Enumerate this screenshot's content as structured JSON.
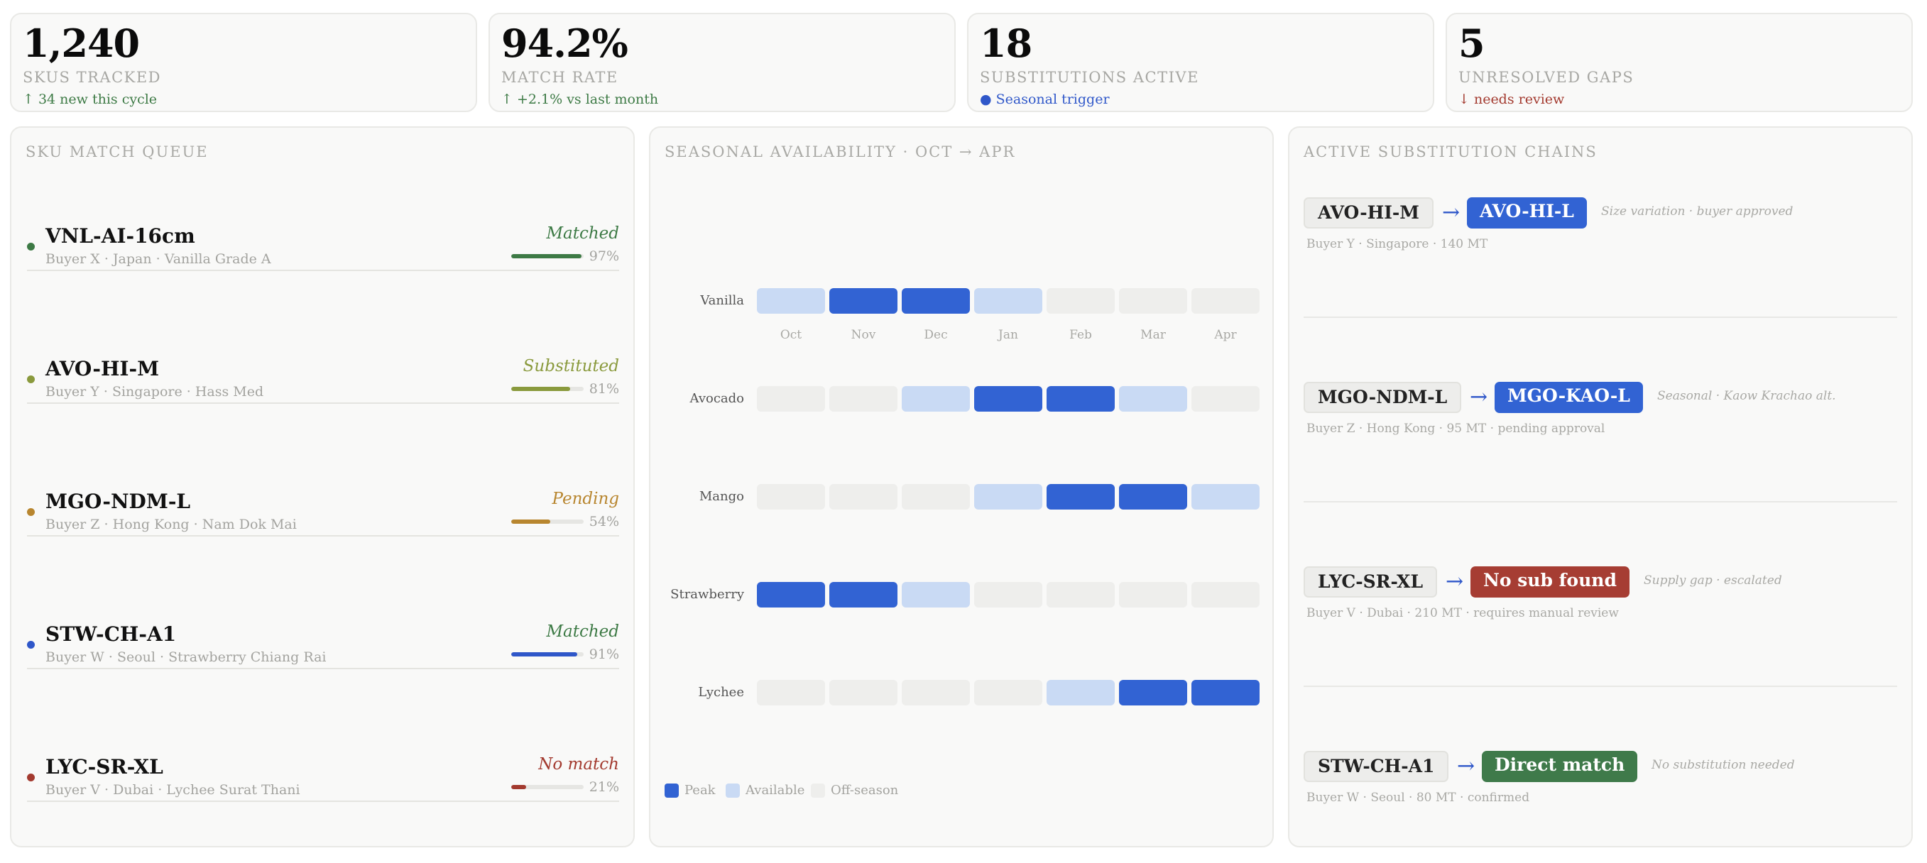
{
  "kpis": [
    {
      "value": "1,240",
      "label": "SKUs tracked",
      "sub": "↑ 34 new this cycle",
      "tone": "green"
    },
    {
      "value": "94.2%",
      "label": "Match rate",
      "sub": "↑ +2.1% vs last month",
      "tone": "green"
    },
    {
      "value": "18",
      "label": "Substitutions active",
      "sub": "● Seasonal trigger",
      "tone": "blue"
    },
    {
      "value": "5",
      "label": "Unresolved gaps",
      "sub": "↓ needs review",
      "tone": "red"
    }
  ],
  "queue": {
    "title": "SKU Match Queue",
    "items": [
      {
        "code": "VNL-AI-16cm",
        "sub": "Buyer X · Japan · Vanilla Grade A",
        "status": "Matched",
        "pct_label": "97%",
        "pct": 97,
        "color": "#3d7a45"
      },
      {
        "code": "AVO-HI-M",
        "sub": "Buyer Y · Singapore · Hass Med",
        "status": "Substituted",
        "pct_label": "81%",
        "pct": 81,
        "color": "#8a9a3d"
      },
      {
        "code": "MGO-NDM-L",
        "sub": "Buyer Z · Hong Kong · Nam Dok Mai",
        "status": "Pending",
        "pct_label": "54%",
        "pct": 54,
        "color": "#b8862f"
      },
      {
        "code": "STW-CH-A1",
        "sub": "Buyer W · Seoul · Strawberry Chiang Rai",
        "status": "Matched",
        "pct_label": "91%",
        "pct": 91,
        "color": "#2f57c9",
        "status_color": "#3d7a45"
      },
      {
        "code": "LYC-SR-XL",
        "sub": "Buyer V · Dubai · Lychee Surat Thani",
        "status": "No match",
        "pct_label": "21%",
        "pct": 21,
        "color": "#a33a2f"
      }
    ]
  },
  "seasonal": {
    "title": "Seasonal Availability · Oct → Apr",
    "months": [
      "Oct",
      "Nov",
      "Dec",
      "Jan",
      "Feb",
      "Mar",
      "Apr"
    ],
    "rows": [
      {
        "label": "Vanilla",
        "levels": [
          1,
          2,
          2,
          1,
          0,
          0,
          0
        ]
      },
      {
        "label": "Avocado",
        "levels": [
          0,
          0,
          1,
          2,
          2,
          1,
          0
        ]
      },
      {
        "label": "Mango",
        "levels": [
          0,
          0,
          0,
          1,
          2,
          2,
          1
        ]
      },
      {
        "label": "Strawberry",
        "levels": [
          2,
          2,
          1,
          0,
          0,
          0,
          0
        ]
      },
      {
        "label": "Lychee",
        "levels": [
          0,
          0,
          0,
          0,
          1,
          2,
          2
        ]
      }
    ],
    "legend": [
      {
        "label": "Peak",
        "color": "#3263d3"
      },
      {
        "label": "Available",
        "color": "#c9daf4"
      },
      {
        "label": "Off-season",
        "color": "#eeeeec"
      }
    ]
  },
  "chains": {
    "title": "Active Substitution Chains",
    "items": [
      {
        "from": "AVO-HI-M",
        "to": "AVO-HI-L",
        "to_color": "#3263d3",
        "note": "Size variation · buyer approved",
        "sub": "Buyer Y · Singapore · 140 MT"
      },
      {
        "from": "MGO-NDM-L",
        "to": "MGO-KAO-L",
        "to_color": "#3263d3",
        "note": "Seasonal · Kaow Krachao alt.",
        "sub": "Buyer Z · Hong Kong · 95 MT · pending approval"
      },
      {
        "from": "LYC-SR-XL",
        "to": "No sub found",
        "to_color": "#a63d33",
        "note": "Supply gap · escalated",
        "sub": "Buyer V · Dubai · 210 MT · requires manual review"
      },
      {
        "from": "STW-CH-A1",
        "to": "Direct match",
        "to_color": "#3f7a4a",
        "note": "No substitution needed",
        "sub": "Buyer W · Seoul · 80 MT · confirmed"
      }
    ]
  }
}
